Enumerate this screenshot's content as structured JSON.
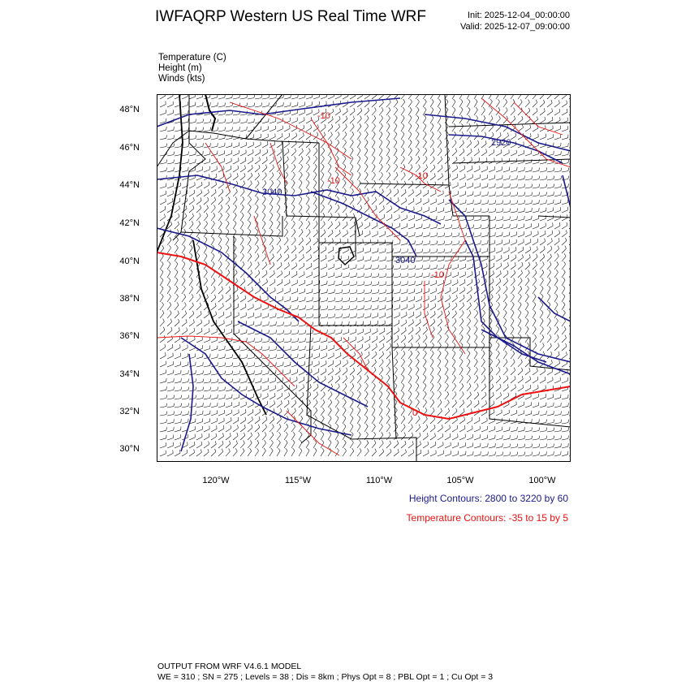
{
  "header": {
    "title": "IWFAQRP Western US Real Time WRF",
    "init": "Init: 2025-12-04_00:00:00",
    "valid": "Valid: 2025-12-07_09:00:00"
  },
  "variables": [
    "Temperature   (C)",
    "Height   (m)",
    "Winds   (kts)"
  ],
  "map": {
    "lat_labels": [
      "48°N",
      "46°N",
      "44°N",
      "42°N",
      "40°N",
      "38°N",
      "36°N",
      "34°N",
      "32°N",
      "30°N"
    ],
    "lon_labels": [
      "120°W",
      "115°W",
      "110°W",
      "105°W",
      "100°W"
    ],
    "height_contour_labels": [
      "2920",
      "3040",
      "3040"
    ],
    "temp_contour_labels": [
      "-10",
      "-10",
      "-10",
      "-10",
      "0"
    ],
    "colors": {
      "height": "#1a1a8c",
      "temperature": "#ee1111",
      "borders": "#000000",
      "barbs": "#000000"
    }
  },
  "legend": {
    "height_contours": "Height Contours: 2800 to 3220 by 60",
    "temperature_contours": "Temperature Contours: -35 to 15 by 5"
  },
  "footer": {
    "line1": "OUTPUT FROM WRF V4.6.1 MODEL",
    "line2": "WE = 310 ; SN = 275 ; Levels = 38 ; Dis = 8km ; Phys Opt = 8 ; PBL Opt = 1 ; Cu Opt = 3"
  }
}
